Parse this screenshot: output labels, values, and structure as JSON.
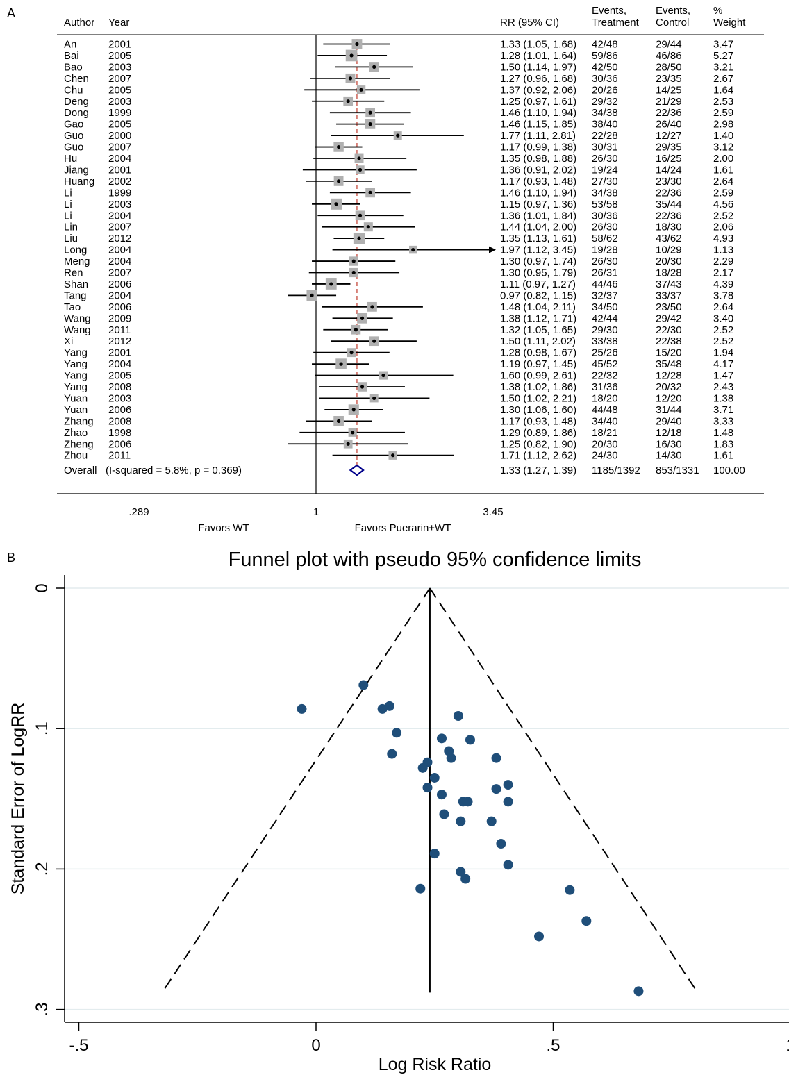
{
  "panels": {
    "a_label": "A",
    "b_label": "B"
  },
  "forest": {
    "headers": {
      "author": "Author",
      "year": "Year",
      "rr": "RR (95% CI)",
      "events_t_1": "Events,",
      "events_t_2": "Treatment",
      "events_c_1": "Events,",
      "events_c_2": "Control",
      "weight_1": "%",
      "weight_2": "Weight"
    },
    "axis_ticks": [
      ".289",
      "1",
      "3.45"
    ],
    "favors_left": "Favors WT",
    "favors_right": "Favors Puerarin+WT",
    "overall": {
      "label": "Overall",
      "het": "(I-squared = 5.8%, p = 0.369)",
      "rr": 1.33,
      "lo": 1.27,
      "hi": 1.39,
      "rr_text": "1.33 (1.27, 1.39)",
      "treat": "1185/1392",
      "control": "853/1331",
      "weight": "100.00"
    },
    "studies": [
      {
        "author": "An",
        "year": "2001",
        "rr": 1.33,
        "lo": 1.05,
        "hi": 1.68,
        "rr_text": "1.33 (1.05, 1.68)",
        "treat": "42/48",
        "control": "29/44",
        "weight": "3.47"
      },
      {
        "author": "Bai",
        "year": "2005",
        "rr": 1.28,
        "lo": 1.01,
        "hi": 1.64,
        "rr_text": "1.28 (1.01, 1.64)",
        "treat": "59/86",
        "control": "46/86",
        "weight": "5.27"
      },
      {
        "author": "Bao",
        "year": "2003",
        "rr": 1.5,
        "lo": 1.14,
        "hi": 1.97,
        "rr_text": "1.50 (1.14, 1.97)",
        "treat": "42/50",
        "control": "28/50",
        "weight": "3.21"
      },
      {
        "author": "Chen",
        "year": "2007",
        "rr": 1.27,
        "lo": 0.96,
        "hi": 1.68,
        "rr_text": "1.27 (0.96, 1.68)",
        "treat": "30/36",
        "control": "23/35",
        "weight": "2.67"
      },
      {
        "author": "Chu",
        "year": "2005",
        "rr": 1.37,
        "lo": 0.92,
        "hi": 2.06,
        "rr_text": "1.37 (0.92, 2.06)",
        "treat": "20/26",
        "control": "14/25",
        "weight": "1.64"
      },
      {
        "author": "Deng",
        "year": "2003",
        "rr": 1.25,
        "lo": 0.97,
        "hi": 1.61,
        "rr_text": "1.25 (0.97, 1.61)",
        "treat": "29/32",
        "control": "21/29",
        "weight": "2.53"
      },
      {
        "author": "Dong",
        "year": "1999",
        "rr": 1.46,
        "lo": 1.1,
        "hi": 1.94,
        "rr_text": "1.46 (1.10, 1.94)",
        "treat": "34/38",
        "control": "22/36",
        "weight": "2.59"
      },
      {
        "author": "Gao",
        "year": "2005",
        "rr": 1.46,
        "lo": 1.15,
        "hi": 1.85,
        "rr_text": "1.46 (1.15, 1.85)",
        "treat": "38/40",
        "control": "26/40",
        "weight": "2.98"
      },
      {
        "author": "Guo",
        "year": "2000",
        "rr": 1.77,
        "lo": 1.11,
        "hi": 2.81,
        "rr_text": "1.77 (1.11, 2.81)",
        "treat": "22/28",
        "control": "12/27",
        "weight": "1.40"
      },
      {
        "author": "Guo",
        "year": "2007",
        "rr": 1.17,
        "lo": 0.99,
        "hi": 1.38,
        "rr_text": "1.17 (0.99, 1.38)",
        "treat": "30/31",
        "control": "29/35",
        "weight": "3.12"
      },
      {
        "author": "Hu",
        "year": "2004",
        "rr": 1.35,
        "lo": 0.98,
        "hi": 1.88,
        "rr_text": "1.35 (0.98, 1.88)",
        "treat": "26/30",
        "control": "16/25",
        "weight": "2.00"
      },
      {
        "author": "Jiang",
        "year": "2001",
        "rr": 1.36,
        "lo": 0.91,
        "hi": 2.02,
        "rr_text": "1.36 (0.91, 2.02)",
        "treat": "19/24",
        "control": "14/24",
        "weight": "1.61"
      },
      {
        "author": "Huang",
        "year": "2002",
        "rr": 1.17,
        "lo": 0.93,
        "hi": 1.48,
        "rr_text": "1.17 (0.93, 1.48)",
        "treat": "27/30",
        "control": "23/30",
        "weight": "2.64"
      },
      {
        "author": "Li",
        "year": "1999",
        "rr": 1.46,
        "lo": 1.1,
        "hi": 1.94,
        "rr_text": "1.46 (1.10, 1.94)",
        "treat": "34/38",
        "control": "22/36",
        "weight": "2.59"
      },
      {
        "author": "Li",
        "year": "2003",
        "rr": 1.15,
        "lo": 0.97,
        "hi": 1.36,
        "rr_text": "1.15 (0.97, 1.36)",
        "treat": "53/58",
        "control": "35/44",
        "weight": "4.56"
      },
      {
        "author": "Li",
        "year": "2004",
        "rr": 1.36,
        "lo": 1.01,
        "hi": 1.84,
        "rr_text": "1.36 (1.01, 1.84)",
        "treat": "30/36",
        "control": "22/36",
        "weight": "2.52"
      },
      {
        "author": "Lin",
        "year": "2007",
        "rr": 1.44,
        "lo": 1.04,
        "hi": 2.0,
        "rr_text": "1.44 (1.04, 2.00)",
        "treat": "26/30",
        "control": "18/30",
        "weight": "2.06"
      },
      {
        "author": "Liu",
        "year": "2012",
        "rr": 1.35,
        "lo": 1.13,
        "hi": 1.61,
        "rr_text": "1.35 (1.13, 1.61)",
        "treat": "58/62",
        "control": "43/62",
        "weight": "4.93"
      },
      {
        "author": "Long",
        "year": "2004",
        "rr": 1.97,
        "lo": 1.12,
        "hi": 3.45,
        "rr_text": "1.97 (1.12, 3.45)",
        "treat": "19/28",
        "control": "10/29",
        "weight": "1.13"
      },
      {
        "author": "Meng",
        "year": "2004",
        "rr": 1.3,
        "lo": 0.97,
        "hi": 1.74,
        "rr_text": "1.30 (0.97, 1.74)",
        "treat": "26/30",
        "control": "20/30",
        "weight": "2.29"
      },
      {
        "author": "Ren",
        "year": "2007",
        "rr": 1.3,
        "lo": 0.95,
        "hi": 1.79,
        "rr_text": "1.30 (0.95, 1.79)",
        "treat": "26/31",
        "control": "18/28",
        "weight": "2.17"
      },
      {
        "author": "Shan",
        "year": "2006",
        "rr": 1.11,
        "lo": 0.97,
        "hi": 1.27,
        "rr_text": "1.11 (0.97, 1.27)",
        "treat": "44/46",
        "control": "37/43",
        "weight": "4.39"
      },
      {
        "author": "Tang",
        "year": "2004",
        "rr": 0.97,
        "lo": 0.82,
        "hi": 1.15,
        "rr_text": "0.97 (0.82, 1.15)",
        "treat": "32/37",
        "control": "33/37",
        "weight": "3.78"
      },
      {
        "author": "Tao",
        "year": "2006",
        "rr": 1.48,
        "lo": 1.04,
        "hi": 2.11,
        "rr_text": "1.48 (1.04, 2.11)",
        "treat": "34/50",
        "control": "23/50",
        "weight": "2.64"
      },
      {
        "author": "Wang",
        "year": "2009",
        "rr": 1.38,
        "lo": 1.12,
        "hi": 1.71,
        "rr_text": "1.38 (1.12, 1.71)",
        "treat": "42/44",
        "control": "29/42",
        "weight": "3.40"
      },
      {
        "author": "Wang",
        "year": "2011",
        "rr": 1.32,
        "lo": 1.05,
        "hi": 1.65,
        "rr_text": "1.32 (1.05, 1.65)",
        "treat": "29/30",
        "control": "22/30",
        "weight": "2.52"
      },
      {
        "author": "Xi",
        "year": "2012",
        "rr": 1.5,
        "lo": 1.11,
        "hi": 2.02,
        "rr_text": "1.50 (1.11, 2.02)",
        "treat": "33/38",
        "control": "22/38",
        "weight": "2.52"
      },
      {
        "author": "Yang",
        "year": "2001",
        "rr": 1.28,
        "lo": 0.98,
        "hi": 1.67,
        "rr_text": "1.28 (0.98, 1.67)",
        "treat": "25/26",
        "control": "15/20",
        "weight": "1.94"
      },
      {
        "author": "Yang",
        "year": "2004",
        "rr": 1.19,
        "lo": 0.97,
        "hi": 1.45,
        "rr_text": "1.19 (0.97, 1.45)",
        "treat": "45/52",
        "control": "35/48",
        "weight": "4.17"
      },
      {
        "author": "Yang",
        "year": "2005",
        "rr": 1.6,
        "lo": 0.99,
        "hi": 2.61,
        "rr_text": "1.60 (0.99, 2.61)",
        "treat": "22/32",
        "control": "12/28",
        "weight": "1.47"
      },
      {
        "author": "Yang",
        "year": "2008",
        "rr": 1.38,
        "lo": 1.02,
        "hi": 1.86,
        "rr_text": "1.38 (1.02, 1.86)",
        "treat": "31/36",
        "control": "20/32",
        "weight": "2.43"
      },
      {
        "author": "Yuan",
        "year": "2003",
        "rr": 1.5,
        "lo": 1.02,
        "hi": 2.21,
        "rr_text": "1.50 (1.02, 2.21)",
        "treat": "18/20",
        "control": "12/20",
        "weight": "1.38"
      },
      {
        "author": "Yuan",
        "year": "2006",
        "rr": 1.3,
        "lo": 1.06,
        "hi": 1.6,
        "rr_text": "1.30 (1.06, 1.60)",
        "treat": "44/48",
        "control": "31/44",
        "weight": "3.71"
      },
      {
        "author": "Zhang",
        "year": "2008",
        "rr": 1.17,
        "lo": 0.93,
        "hi": 1.48,
        "rr_text": "1.17 (0.93, 1.48)",
        "treat": "34/40",
        "control": "29/40",
        "weight": "3.33"
      },
      {
        "author": "Zhao",
        "year": "1998",
        "rr": 1.29,
        "lo": 0.89,
        "hi": 1.86,
        "rr_text": "1.29 (0.89, 1.86)",
        "treat": "18/21",
        "control": "12/18",
        "weight": "1.48"
      },
      {
        "author": "Zheng",
        "year": "2006",
        "rr": 1.25,
        "lo": 0.82,
        "hi": 1.9,
        "rr_text": "1.25 (0.82, 1.90)",
        "treat": "20/30",
        "control": "16/30",
        "weight": "1.83"
      },
      {
        "author": "Zhou",
        "year": "2011",
        "rr": 1.71,
        "lo": 1.12,
        "hi": 2.62,
        "rr_text": "1.71 (1.12, 2.62)",
        "treat": "24/30",
        "control": "14/30",
        "weight": "1.61"
      }
    ]
  },
  "funnel": {
    "title": "Funnel plot with pseudo 95% confidence limits",
    "xlabel": "Log Risk Ratio",
    "ylabel": "Standard Error of LogRR",
    "x_ticks": [
      "-.5",
      "0",
      ".5",
      "1"
    ],
    "y_ticks": [
      "0",
      ".1",
      ".2",
      ".3"
    ]
  },
  "chart_data": [
    {
      "type": "forest",
      "xscale": "log",
      "xlim": [
        0.289,
        3.45
      ],
      "pooled_rr": 1.33,
      "xtick_labels": [
        ".289",
        "1",
        "3.45"
      ]
    },
    {
      "type": "scatter",
      "title": "Funnel plot with pseudo 95% confidence limits",
      "xlabel": "Log Risk Ratio",
      "ylabel": "Standard Error of LogRR",
      "xlim": [
        -0.53,
        1.0
      ],
      "ylim": [
        0.3,
        0
      ],
      "y_reversed": true,
      "pooled_logrr": 0.24,
      "pseudo_ci_max_se": 0.288,
      "points": [
        {
          "x": 0.1,
          "y": 0.069
        },
        {
          "x": -0.03,
          "y": 0.086
        },
        {
          "x": 0.14,
          "y": 0.086
        },
        {
          "x": 0.155,
          "y": 0.084
        },
        {
          "x": 0.3,
          "y": 0.091
        },
        {
          "x": 0.17,
          "y": 0.103
        },
        {
          "x": 0.265,
          "y": 0.107
        },
        {
          "x": 0.325,
          "y": 0.108
        },
        {
          "x": 0.16,
          "y": 0.118
        },
        {
          "x": 0.28,
          "y": 0.116
        },
        {
          "x": 0.285,
          "y": 0.121
        },
        {
          "x": 0.235,
          "y": 0.124
        },
        {
          "x": 0.38,
          "y": 0.121
        },
        {
          "x": 0.225,
          "y": 0.128
        },
        {
          "x": 0.25,
          "y": 0.135
        },
        {
          "x": 0.235,
          "y": 0.142
        },
        {
          "x": 0.265,
          "y": 0.147
        },
        {
          "x": 0.38,
          "y": 0.143
        },
        {
          "x": 0.405,
          "y": 0.14
        },
        {
          "x": 0.31,
          "y": 0.152
        },
        {
          "x": 0.32,
          "y": 0.152
        },
        {
          "x": 0.405,
          "y": 0.152
        },
        {
          "x": 0.27,
          "y": 0.161
        },
        {
          "x": 0.305,
          "y": 0.166
        },
        {
          "x": 0.37,
          "y": 0.166
        },
        {
          "x": 0.39,
          "y": 0.182
        },
        {
          "x": 0.25,
          "y": 0.189
        },
        {
          "x": 0.405,
          "y": 0.197
        },
        {
          "x": 0.305,
          "y": 0.202
        },
        {
          "x": 0.315,
          "y": 0.207
        },
        {
          "x": 0.22,
          "y": 0.214
        },
        {
          "x": 0.535,
          "y": 0.215
        },
        {
          "x": 0.57,
          "y": 0.237
        },
        {
          "x": 0.47,
          "y": 0.248
        },
        {
          "x": 0.68,
          "y": 0.287
        }
      ]
    }
  ],
  "colors": {
    "marker": "#1f4e79",
    "box": "#b0b0b0",
    "diamond": "#00008b",
    "ref_line": "#c0392b",
    "grid": "#e3ecee"
  }
}
